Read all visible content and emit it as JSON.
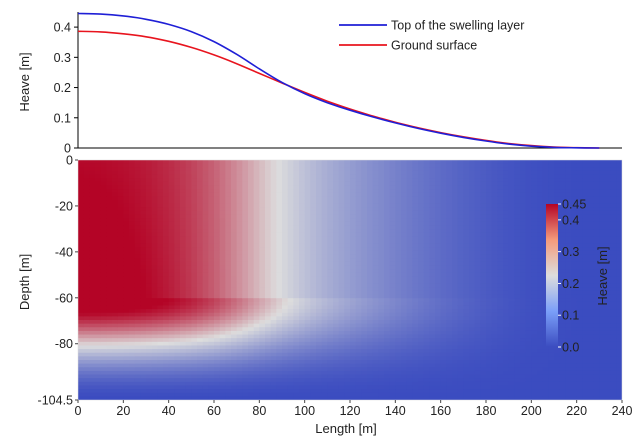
{
  "chart_data": [
    {
      "type": "line",
      "ylabel": "Heave [m]",
      "ylim": [
        0,
        0.45
      ],
      "xlim": [
        0,
        240
      ],
      "yticks": [
        "0",
        "0.1",
        "0.2",
        "0.3",
        "0.4"
      ],
      "legend_position": "top-right",
      "series": [
        {
          "name": "Top of the swelling layer",
          "color": "#1f1fd6",
          "x": [
            0,
            10,
            20,
            30,
            40,
            50,
            60,
            70,
            80,
            90,
            100,
            110,
            120,
            130,
            140,
            150,
            160,
            170,
            180,
            190,
            200,
            210,
            220,
            230
          ],
          "y": [
            0.445,
            0.443,
            0.437,
            0.426,
            0.409,
            0.385,
            0.352,
            0.31,
            0.262,
            0.217,
            0.18,
            0.15,
            0.125,
            0.103,
            0.083,
            0.065,
            0.049,
            0.035,
            0.023,
            0.013,
            0.006,
            0.002,
            0.0005,
            0.0
          ]
        },
        {
          "name": "Ground surface",
          "color": "#e8141e",
          "x": [
            0,
            10,
            20,
            30,
            40,
            50,
            60,
            70,
            80,
            90,
            100,
            110,
            120,
            130,
            140,
            150,
            160,
            170,
            180,
            190,
            200,
            210,
            220,
            230
          ],
          "y": [
            0.386,
            0.384,
            0.378,
            0.368,
            0.353,
            0.333,
            0.308,
            0.279,
            0.247,
            0.215,
            0.184,
            0.155,
            0.129,
            0.106,
            0.085,
            0.067,
            0.051,
            0.037,
            0.025,
            0.015,
            0.008,
            0.003,
            0.001,
            0.0
          ]
        }
      ]
    },
    {
      "type": "heatmap",
      "xlabel": "Length [m]",
      "ylabel": "Depth [m]",
      "xlim": [
        0,
        240
      ],
      "ylim": [
        -104.5,
        0
      ],
      "xticks": [
        "0",
        "20",
        "40",
        "60",
        "80",
        "100",
        "120",
        "140",
        "160",
        "180",
        "200",
        "220",
        "240"
      ],
      "yticks": [
        "0",
        "-20",
        "-40",
        "-60",
        "-80",
        "-104.5"
      ],
      "colorbar": {
        "label": "Heave [m]",
        "range": [
          0.0,
          0.45
        ],
        "ticks": [
          "0.45",
          "0.4",
          "0.3",
          "0.2",
          "0.1",
          "0.0"
        ],
        "colors": [
          "#3b4cc0",
          "#dddddd",
          "#b40426"
        ]
      },
      "swelling_layer_bottom_depth": -60,
      "swelling_layer_top_depth": 0
    }
  ]
}
